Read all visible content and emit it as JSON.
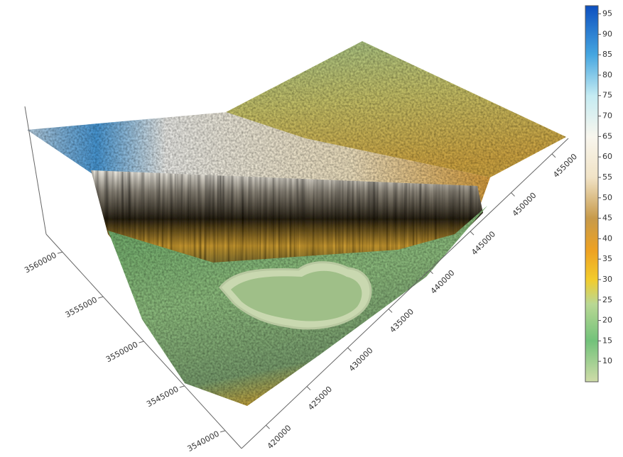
{
  "chart_data": {
    "type": "surface3d",
    "xlim": [
      417000,
      457000
    ],
    "xticks": [
      420000,
      425000,
      430000,
      435000,
      440000,
      445000,
      450000,
      455000
    ],
    "ylim": [
      3538000,
      3562000
    ],
    "yticks": [
      3540000,
      3545000,
      3550000,
      3555000,
      3560000
    ],
    "clim": [
      5,
      97
    ],
    "cticks": [
      10,
      15,
      20,
      25,
      30,
      35,
      40,
      45,
      50,
      55,
      60,
      65,
      70,
      75,
      80,
      85,
      90,
      95
    ],
    "colormap": [
      {
        "value": 5,
        "color": "#cfdca8"
      },
      {
        "value": 15,
        "color": "#72c27a"
      },
      {
        "value": 24,
        "color": "#b9d894"
      },
      {
        "value": 30,
        "color": "#f2cc2c"
      },
      {
        "value": 37,
        "color": "#eea222"
      },
      {
        "value": 45,
        "color": "#c79a4a"
      },
      {
        "value": 55,
        "color": "#f1e3c6"
      },
      {
        "value": 65,
        "color": "#f8f6ee"
      },
      {
        "value": 75,
        "color": "#c4ebf2"
      },
      {
        "value": 85,
        "color": "#45a6e0"
      },
      {
        "value": 97,
        "color": "#0d4fbf"
      }
    ]
  }
}
